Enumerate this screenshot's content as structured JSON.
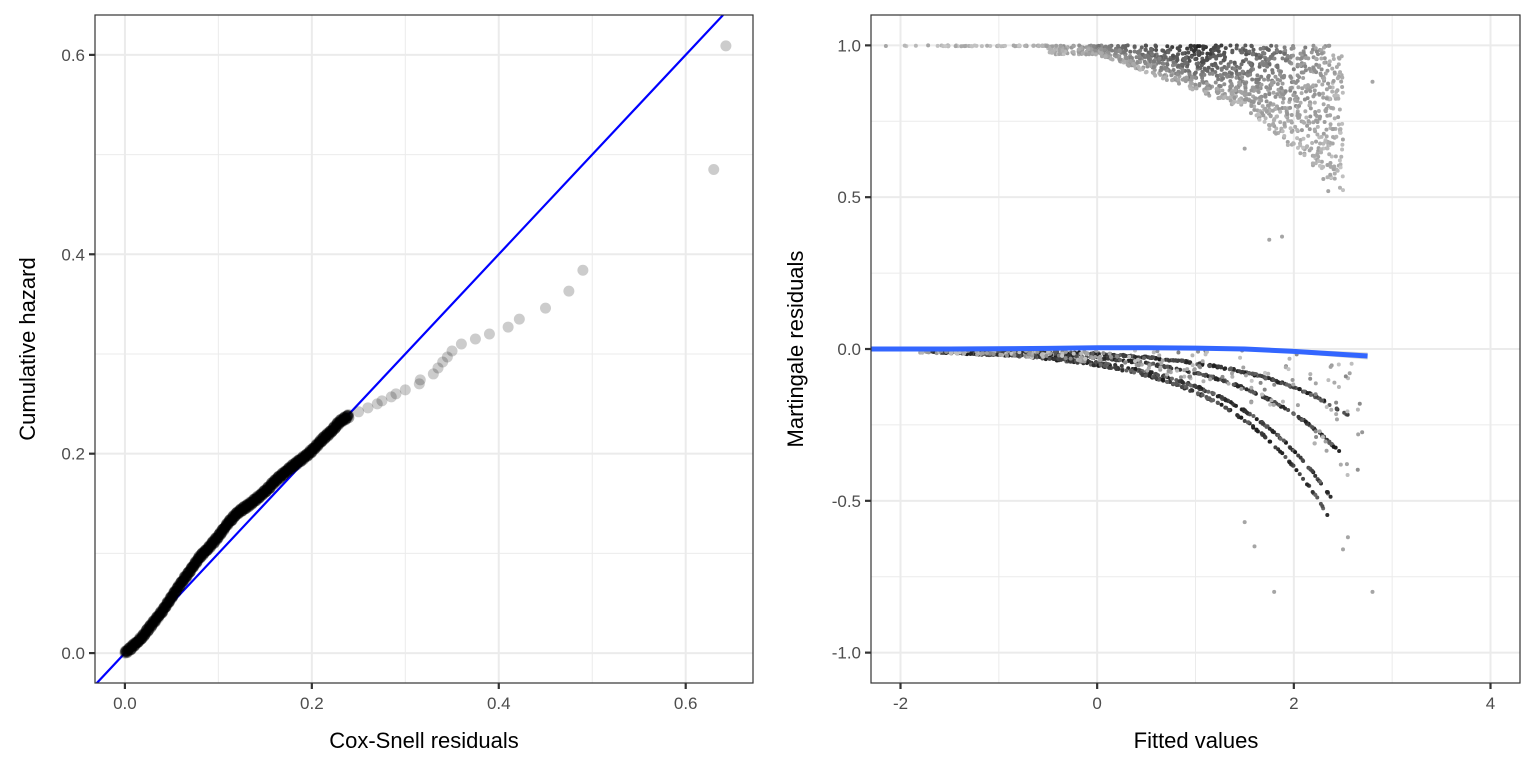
{
  "chart_data": [
    {
      "type": "scatter",
      "panel": "left",
      "title": "",
      "xlabel": "Cox-Snell residuals",
      "ylabel": "Cumulative hazard",
      "xlim": [
        -0.032,
        0.672
      ],
      "ylim": [
        -0.03,
        0.64
      ],
      "x_ticks": [
        0.0,
        0.2,
        0.4,
        0.6
      ],
      "x_tick_labels": [
        "0.0",
        "0.2",
        "0.4",
        "0.6"
      ],
      "y_ticks": [
        0.0,
        0.2,
        0.4,
        0.6
      ],
      "y_tick_labels": [
        "0.0",
        "0.2",
        "0.4",
        "0.6"
      ],
      "x_minor": [
        0.1,
        0.3,
        0.5
      ],
      "y_minor": [
        0.1,
        0.3,
        0.5
      ],
      "grid": true,
      "reference_line": {
        "slope": 1,
        "intercept": 0,
        "color": "#0000ff"
      },
      "point_color": "#000000",
      "point_alpha": 0.2,
      "dense_curve": [
        [
          0.0,
          0.0
        ],
        [
          0.01,
          0.008
        ],
        [
          0.02,
          0.018
        ],
        [
          0.03,
          0.03
        ],
        [
          0.04,
          0.042
        ],
        [
          0.05,
          0.056
        ],
        [
          0.06,
          0.07
        ],
        [
          0.07,
          0.083
        ],
        [
          0.08,
          0.096
        ],
        [
          0.09,
          0.106
        ],
        [
          0.1,
          0.117
        ],
        [
          0.11,
          0.13
        ],
        [
          0.12,
          0.14
        ],
        [
          0.13,
          0.147
        ],
        [
          0.14,
          0.154
        ],
        [
          0.15,
          0.162
        ],
        [
          0.16,
          0.172
        ],
        [
          0.17,
          0.18
        ],
        [
          0.18,
          0.188
        ],
        [
          0.19,
          0.195
        ],
        [
          0.2,
          0.203
        ],
        [
          0.21,
          0.213
        ],
        [
          0.22,
          0.222
        ],
        [
          0.23,
          0.232
        ],
        [
          0.24,
          0.238
        ]
      ],
      "sparse_points": [
        [
          0.25,
          0.242
        ],
        [
          0.26,
          0.246
        ],
        [
          0.27,
          0.25
        ],
        [
          0.275,
          0.253
        ],
        [
          0.285,
          0.257
        ],
        [
          0.29,
          0.26
        ],
        [
          0.3,
          0.264
        ],
        [
          0.315,
          0.27
        ],
        [
          0.316,
          0.274
        ],
        [
          0.33,
          0.28
        ],
        [
          0.335,
          0.286
        ],
        [
          0.34,
          0.292
        ],
        [
          0.345,
          0.297
        ],
        [
          0.35,
          0.303
        ],
        [
          0.36,
          0.31
        ],
        [
          0.375,
          0.315
        ],
        [
          0.39,
          0.32
        ],
        [
          0.41,
          0.327
        ],
        [
          0.422,
          0.335
        ],
        [
          0.45,
          0.346
        ],
        [
          0.475,
          0.363
        ],
        [
          0.49,
          0.384
        ],
        [
          0.63,
          0.485
        ],
        [
          0.643,
          0.609
        ]
      ]
    },
    {
      "type": "heatmap",
      "subtype": "hexbin",
      "panel": "right",
      "title": "",
      "xlabel": "Fitted values",
      "ylabel": "Martingale residuals",
      "xlim": [
        -2.3,
        4.3
      ],
      "ylim": [
        -1.1,
        1.1
      ],
      "x_ticks": [
        -2,
        0,
        2,
        4
      ],
      "x_tick_labels": [
        "-2",
        "0",
        "2",
        "4"
      ],
      "y_ticks": [
        -1.0,
        -0.5,
        0.0,
        0.5,
        1.0
      ],
      "y_tick_labels": [
        "-1.0",
        "-0.5",
        "0.0",
        "0.5",
        "1.0"
      ],
      "x_minor": [
        -1,
        1,
        3
      ],
      "y_minor": [
        -0.75,
        -0.25,
        0.25,
        0.75
      ],
      "grid": true,
      "hex_color_low": "#c8c8c8",
      "hex_color_high": "#1a1a1a",
      "event_cluster": {
        "description": "events near residual 1.0, spread down toward 0.5 at higher fitted values",
        "x_range": [
          -2.2,
          2.5
        ],
        "y_top": 1.0,
        "outliers": [
          [
            1.75,
            0.36
          ],
          [
            1.88,
            0.37
          ],
          [
            2.35,
            0.52
          ],
          [
            2.3,
            0.56
          ],
          [
            1.5,
            0.66
          ],
          [
            2.8,
            0.88
          ]
        ]
      },
      "censored_curves": [
        {
          "k": 0.06,
          "x_end": 2.6,
          "y_end": -0.23
        },
        {
          "k": 0.1,
          "x_end": 2.55,
          "y_end": -0.37
        },
        {
          "k": 0.14,
          "x_end": 2.4,
          "y_end": -0.5
        },
        {
          "k": 0.2,
          "x_end": 2.35,
          "y_end": -0.55
        }
      ],
      "censored_outliers": [
        [
          1.8,
          -0.8
        ],
        [
          2.8,
          -0.8
        ],
        [
          1.6,
          -0.65
        ],
        [
          2.55,
          -0.62
        ],
        [
          2.5,
          -0.66
        ],
        [
          1.5,
          -0.57
        ]
      ],
      "smooth_line": {
        "color": "#3366ff",
        "x": [
          -2.3,
          -1.5,
          -0.5,
          0.0,
          0.5,
          1.0,
          1.5,
          2.0,
          2.5,
          2.75
        ],
        "y": [
          0.0,
          0.0,
          0.002,
          0.004,
          0.004,
          0.003,
          0.0,
          -0.008,
          -0.018,
          -0.023
        ]
      }
    }
  ]
}
